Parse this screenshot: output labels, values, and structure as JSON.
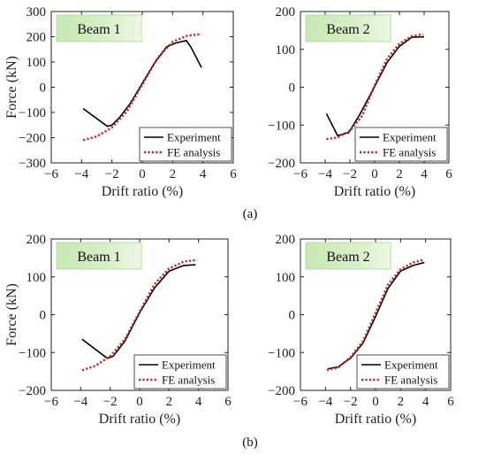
{
  "figure": {
    "captions": [
      "(a)",
      "(b)"
    ]
  },
  "chart_data": [
    {
      "type": "line",
      "panel_label": "Beam 1",
      "xlabel": "Drift ratio (%)",
      "ylabel": "Force (kN)",
      "xlim": [
        -6,
        6
      ],
      "ylim": [
        -300,
        300
      ],
      "xticks": [
        -6,
        -4,
        -2,
        0,
        2,
        4,
        6
      ],
      "yticks": [
        -300,
        -200,
        -100,
        0,
        100,
        200,
        300
      ],
      "legend_position": "lower-right",
      "series": [
        {
          "name": "Experiment",
          "style": "solid",
          "color": "#000000",
          "x": [
            -3.9,
            -2.3,
            -2.0,
            -1.5,
            -0.8,
            0,
            0.8,
            1.6,
            2.2,
            2.9,
            3.2,
            3.9
          ],
          "y": [
            -85,
            -155,
            -150,
            -120,
            -65,
            15,
            95,
            160,
            175,
            185,
            160,
            78
          ]
        },
        {
          "name": "FE analysis",
          "style": "dotted",
          "color": "#cc2222",
          "x": [
            -3.9,
            -3.0,
            -2.0,
            -1.0,
            0,
            1.0,
            2.0,
            3.0,
            3.9
          ],
          "y": [
            -210,
            -195,
            -160,
            -95,
            10,
            115,
            180,
            205,
            210
          ]
        }
      ]
    },
    {
      "type": "line",
      "panel_label": "Beam 2",
      "xlabel": "Drift ratio (%)",
      "ylabel": "",
      "xlim": [
        -6,
        6
      ],
      "ylim": [
        -200,
        200
      ],
      "xticks": [
        -6,
        -4,
        -2,
        0,
        2,
        4,
        6
      ],
      "yticks": [
        -200,
        -100,
        0,
        100,
        200
      ],
      "legend_position": "lower-right",
      "series": [
        {
          "name": "Experiment",
          "style": "solid",
          "color": "#000000",
          "x": [
            -3.9,
            -3.0,
            -2.1,
            -1.2,
            0,
            1.0,
            2.0,
            3.0,
            4.0
          ],
          "y": [
            -70,
            -128,
            -120,
            -72,
            2,
            65,
            108,
            132,
            133
          ]
        },
        {
          "name": "FE analysis",
          "style": "dotted",
          "color": "#cc2222",
          "x": [
            -3.9,
            -3.0,
            -2.0,
            -1.0,
            0,
            1.0,
            2.0,
            3.0,
            3.9
          ],
          "y": [
            -137,
            -133,
            -115,
            -75,
            5,
            75,
            115,
            135,
            140
          ]
        }
      ]
    },
    {
      "type": "line",
      "panel_label": "Beam 1",
      "xlabel": "Drift ratio (%)",
      "ylabel": "Force (kN)",
      "xlim": [
        -6,
        6
      ],
      "ylim": [
        -200,
        200
      ],
      "xticks": [
        -6,
        -4,
        -2,
        0,
        2,
        4,
        6
      ],
      "yticks": [
        -200,
        -100,
        0,
        100,
        200
      ],
      "legend_position": "lower-right",
      "series": [
        {
          "name": "Experiment",
          "style": "solid",
          "color": "#000000",
          "x": [
            -3.9,
            -2.2,
            -1.8,
            -1.0,
            0,
            1.0,
            2.0,
            3.0,
            3.8
          ],
          "y": [
            -65,
            -115,
            -110,
            -70,
            5,
            70,
            115,
            130,
            132
          ]
        },
        {
          "name": "FE analysis",
          "style": "dotted",
          "color": "#cc2222",
          "x": [
            -3.9,
            -3.0,
            -2.0,
            -1.0,
            0,
            1.0,
            2.0,
            3.0,
            3.9
          ],
          "y": [
            -147,
            -135,
            -110,
            -65,
            8,
            80,
            122,
            140,
            145
          ]
        }
      ]
    },
    {
      "type": "line",
      "panel_label": "Beam 2",
      "xlabel": "Drift ratio (%)",
      "ylabel": "",
      "xlim": [
        -6,
        6
      ],
      "ylim": [
        -200,
        200
      ],
      "xticks": [
        -6,
        -4,
        -2,
        0,
        2,
        4,
        6
      ],
      "yticks": [
        -200,
        -100,
        0,
        100,
        200
      ],
      "legend_position": "lower-right",
      "series": [
        {
          "name": "Experiment",
          "style": "solid",
          "color": "#000000",
          "x": [
            -3.8,
            -3.0,
            -2.0,
            -1.0,
            0,
            1.0,
            2.0,
            3.0,
            3.9
          ],
          "y": [
            -143,
            -138,
            -115,
            -75,
            -5,
            70,
            115,
            130,
            138
          ]
        },
        {
          "name": "FE analysis",
          "style": "dotted",
          "color": "#cc2222",
          "x": [
            -3.9,
            -3.0,
            -2.0,
            -1.0,
            0,
            1.0,
            2.0,
            3.0,
            3.9
          ],
          "y": [
            -146,
            -140,
            -112,
            -70,
            5,
            80,
            120,
            138,
            146
          ]
        }
      ]
    }
  ]
}
